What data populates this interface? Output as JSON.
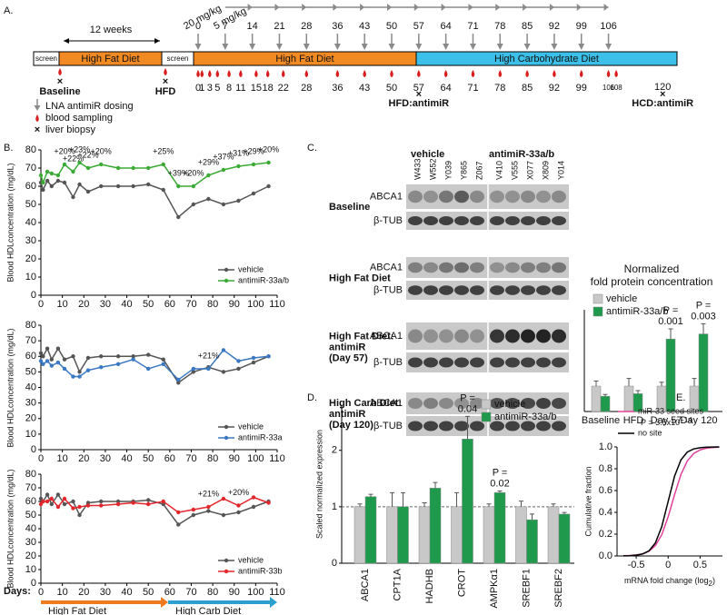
{
  "panel_labels": [
    "A.",
    "B.",
    "C.",
    "D.",
    "E."
  ],
  "timeline": {
    "dose_labels": [
      "20 mg/kg",
      "5 mg/kg"
    ],
    "dosing_days": [
      0,
      7,
      14,
      21,
      28,
      36,
      43,
      50,
      57,
      64,
      71,
      78,
      85,
      92,
      99,
      106
    ],
    "duration": "12 weeks",
    "segments": [
      "screen",
      "High Fat Diet",
      "screen",
      "High Fat Diet",
      "High Carbohydrate Diet"
    ],
    "sampling_days": [
      0,
      1,
      3,
      5,
      8,
      11,
      15,
      18,
      22,
      28,
      36,
      43,
      50,
      57,
      64,
      71,
      78,
      85,
      92,
      99,
      106,
      108
    ],
    "final_day": 120,
    "biopsies": [
      "Baseline",
      "HFD",
      "HFD:antimiR",
      "HCD:antimiR"
    ],
    "legend": [
      "LNA antimiR dosing",
      "blood sampling",
      "liver biopsy"
    ]
  },
  "blot": {
    "groups": [
      "vehicle",
      "antimiR-33a/b"
    ],
    "samples": [
      "W433",
      "W552",
      "Y039",
      "Y865",
      "Z067",
      "V410",
      "V555",
      "X077",
      "X809",
      "Y014"
    ],
    "rows": [
      {
        "label": [
          "Baseline"
        ],
        "bands": [
          "ABCA1",
          "β-TUB"
        ]
      },
      {
        "label": [
          "High Fat Diet"
        ],
        "bands": [
          "ABCA1",
          "β-TUB"
        ]
      },
      {
        "label": [
          "High Fat Diet:",
          "antimiR",
          "(Day 57)"
        ],
        "bands": [
          "ABCA1",
          "β-TUB"
        ]
      },
      {
        "label": [
          "High Carb Diet:",
          "antimiR",
          "(Day 120)"
        ],
        "bands": [
          "ABCA1",
          "β-TUB"
        ]
      }
    ]
  },
  "chart_data": [
    {
      "type": "line",
      "y_label": "Blood HDLconcentration (mg/dL)",
      "x": [
        0,
        1,
        3,
        5,
        8,
        11,
        15,
        18,
        22,
        28,
        36,
        43,
        50,
        57,
        64,
        71,
        78,
        85,
        92,
        99,
        106
      ],
      "xlim": [
        0,
        110
      ],
      "xticks": [
        0,
        10,
        20,
        30,
        40,
        50,
        60,
        70,
        80,
        90,
        100,
        110
      ],
      "ylim": [
        0,
        80
      ],
      "yticks": [
        0,
        10,
        20,
        30,
        40,
        50,
        60,
        70,
        80
      ],
      "series": [
        {
          "name": "vehicle",
          "color": "#555555",
          "values": [
            62,
            58,
            63,
            60,
            63,
            62,
            54,
            61,
            57,
            60,
            60,
            60,
            61,
            58,
            43,
            50,
            53,
            50,
            52,
            56,
            60
          ]
        },
        {
          "name": "antimiR-33a/b",
          "color": "#3aaa35",
          "values": [
            66,
            62,
            68,
            67,
            66,
            72,
            68,
            73,
            70,
            72,
            70,
            70,
            70,
            72,
            60,
            60,
            66,
            69,
            71,
            72,
            73
          ]
        }
      ],
      "annotations": [
        {
          "x": 11,
          "text": "+20%"
        },
        {
          "x": 15,
          "text": "+22%"
        },
        {
          "x": 18,
          "text": "+23%"
        },
        {
          "x": 22,
          "text": "+22%"
        },
        {
          "x": 28,
          "text": "+20%"
        },
        {
          "x": 57,
          "text": "+25%"
        },
        {
          "x": 64,
          "text": "+39%"
        },
        {
          "x": 71,
          "text": "+20%"
        },
        {
          "x": 78,
          "text": "+29%"
        },
        {
          "x": 85,
          "text": "+37%"
        },
        {
          "x": 92,
          "text": "+31%"
        },
        {
          "x": 99,
          "text": "+29%"
        },
        {
          "x": 106,
          "text": "+20%"
        }
      ]
    },
    {
      "type": "line",
      "y_label": "Blood HDLconcentration (mg/dL)",
      "x": [
        0,
        1,
        3,
        5,
        8,
        11,
        15,
        18,
        22,
        28,
        36,
        43,
        50,
        57,
        64,
        71,
        78,
        85,
        92,
        99,
        106
      ],
      "xlim": [
        0,
        110
      ],
      "xticks": [
        0,
        10,
        20,
        30,
        40,
        50,
        60,
        70,
        80,
        90,
        100,
        110
      ],
      "ylim": [
        0,
        80
      ],
      "yticks": [
        0,
        10,
        20,
        30,
        40,
        50,
        60,
        70,
        80
      ],
      "series": [
        {
          "name": "vehicle",
          "color": "#555555",
          "values": [
            62,
            60,
            65,
            58,
            65,
            58,
            60,
            50,
            59,
            60,
            60,
            60,
            61,
            58,
            43,
            50,
            53,
            50,
            52,
            56,
            60
          ]
        },
        {
          "name": "antimiR-33a",
          "color": "#3a78c2",
          "values": [
            57,
            55,
            57,
            54,
            56,
            52,
            47,
            47,
            51,
            53,
            55,
            58,
            52,
            55,
            45,
            52,
            52,
            64,
            57,
            59,
            60
          ]
        }
      ],
      "annotations": [
        {
          "x": 78,
          "text": "+21%"
        }
      ]
    },
    {
      "type": "line",
      "y_label": "Blood HDLconcentration (mg/dL)",
      "x_label": "Days:",
      "x": [
        0,
        1,
        3,
        5,
        8,
        11,
        15,
        18,
        22,
        28,
        36,
        43,
        50,
        57,
        64,
        71,
        78,
        85,
        92,
        99,
        106
      ],
      "xlim": [
        0,
        110
      ],
      "xticks": [
        0,
        10,
        20,
        30,
        40,
        50,
        60,
        70,
        80,
        90,
        100,
        110
      ],
      "ylim": [
        0,
        80
      ],
      "yticks": [
        0,
        10,
        20,
        30,
        40,
        50,
        60,
        70,
        80
      ],
      "series": [
        {
          "name": "vehicle",
          "color": "#555555",
          "values": [
            62,
            60,
            65,
            58,
            65,
            58,
            60,
            50,
            59,
            60,
            60,
            60,
            61,
            58,
            43,
            50,
            53,
            50,
            52,
            56,
            60
          ]
        },
        {
          "name": "antimiR-33b",
          "color": "#e3262b",
          "values": [
            58,
            60,
            60,
            62,
            56,
            62,
            55,
            56,
            57,
            57,
            58,
            59,
            58,
            60,
            52,
            54,
            56,
            62,
            57,
            63,
            59
          ]
        }
      ],
      "annotations": [
        {
          "x": 78,
          "text": "+21%"
        },
        {
          "x": 92,
          "text": "+20%"
        }
      ],
      "phases": [
        "High Fat Diet",
        "High Carb Diet"
      ]
    },
    {
      "type": "bar",
      "title": [
        "Normalized",
        "fold protein concentration"
      ],
      "categories": [
        "Baseline",
        "HFD",
        "Day 57",
        "Day 120"
      ],
      "ylim": [
        0,
        4
      ],
      "series": [
        {
          "name": "vehicle",
          "color": "#c8c8c8",
          "values": [
            1,
            1,
            1,
            1
          ],
          "errors": [
            0.2,
            0.3,
            0.15,
            0.3
          ]
        },
        {
          "name": "antimiR-33a/b",
          "color": "#1f9a4c",
          "values": [
            0.6,
            0.7,
            2.85,
            3.05
          ],
          "errors": [
            0.07,
            0.12,
            0.4,
            0.4
          ]
        }
      ],
      "annotations": [
        null,
        null,
        [
          "P =",
          "0.001"
        ],
        [
          "P =",
          "0.003"
        ]
      ]
    },
    {
      "type": "bar",
      "y_label": "Scaled normalized expression",
      "categories": [
        "ABCA1",
        "CPT1A",
        "HADHB",
        "CROT",
        "AMPKα1",
        "SREBF1",
        "SREBF2"
      ],
      "ylim": [
        0,
        2.8
      ],
      "yticks": [
        0,
        1,
        2
      ],
      "reference_line": 1,
      "series": [
        {
          "name": "vehicle",
          "color": "#c8c8c8",
          "values": [
            1,
            1,
            1,
            1,
            1,
            1,
            1
          ],
          "errors": [
            0.05,
            0.25,
            0.07,
            0.25,
            0.05,
            0.1,
            0.05
          ]
        },
        {
          "name": "antimiR-33a/b",
          "color": "#1f9a4c",
          "values": [
            1.18,
            1.0,
            1.33,
            2.2,
            1.25,
            0.77,
            0.87
          ],
          "errors": [
            0.04,
            0.25,
            0.1,
            0.4,
            0.03,
            0.1,
            0.03
          ]
        }
      ],
      "annotations": [
        null,
        null,
        null,
        [
          "P =",
          "0.04"
        ],
        [
          "P =",
          "0.02"
        ],
        null,
        null
      ]
    },
    {
      "type": "line",
      "y_label": "Cumulative fraction",
      "x_label": {
        "text": "mRNA fold change (log",
        "sub": "2",
        "end": ")"
      },
      "x": [
        -0.7,
        -0.6,
        -0.5,
        -0.4,
        -0.3,
        -0.2,
        -0.1,
        0,
        0.1,
        0.2,
        0.3,
        0.4,
        0.5,
        0.6,
        0.7,
        0.8
      ],
      "xlim": [
        -0.8,
        0.85
      ],
      "xticks": [
        -0.5,
        0,
        0.5
      ],
      "ylim": [
        0,
        1
      ],
      "yticks": [
        {
          "value": 0,
          "label": "0.0"
        },
        {
          "value": 0.2,
          "label": "0.2"
        },
        {
          "value": 0.4,
          "label": "0.4"
        },
        {
          "value": 0.6,
          "label": "0.6"
        },
        {
          "value": 0.8,
          "label": "0.8"
        },
        {
          "value": 1,
          "label": "1.0"
        }
      ],
      "legend": "upper left",
      "series": [
        {
          "name": "miR-33 seed sites",
          "color": "#e0409a",
          "values": [
            0.002,
            0.004,
            0.009,
            0.019,
            0.044,
            0.095,
            0.195,
            0.359,
            0.562,
            0.747,
            0.872,
            0.94,
            0.973,
            0.988,
            0.995,
            0.998
          ]
        },
        {
          "name": "no site",
          "color": "#000000",
          "values": [
            0.001,
            0.002,
            0.007,
            0.018,
            0.047,
            0.119,
            0.269,
            0.5,
            0.731,
            0.881,
            0.953,
            0.982,
            0.993,
            0.998,
            0.999,
            1
          ]
        }
      ],
      "annotation": {
        "text": "P = 3.5x10",
        "sup": "−14"
      }
    }
  ]
}
